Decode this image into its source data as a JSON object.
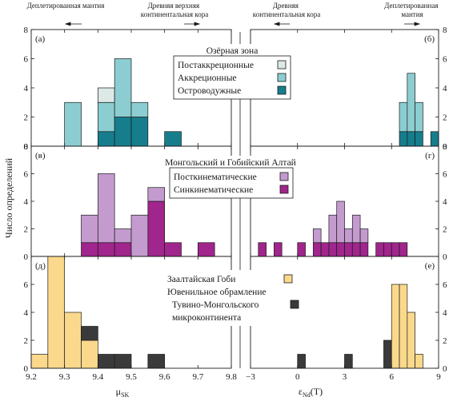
{
  "chart_data": {
    "type": "bar",
    "subtype": "stacked-histogram",
    "layout": "3 rows x 2 columns, shared axes",
    "ylabel": "Число определений",
    "top_annotations": {
      "left_left": {
        "text": "Деплетированная мантия",
        "arrow": "left"
      },
      "left_right": {
        "text": "Древняя верхняя континентальная кора",
        "arrow": "right"
      },
      "right_left": {
        "text": "Древняя континентальная кора",
        "arrow": "left"
      },
      "right_right": {
        "text": "Деплетированная мантия",
        "arrow": "right"
      }
    },
    "axes": {
      "left": {
        "xlabel": "μ",
        "xlabel_sub": "SK",
        "xlim": [
          9.2,
          9.8
        ],
        "xticks": [
          9.2,
          9.3,
          9.4,
          9.5,
          9.6,
          9.7,
          9.8
        ],
        "xtick_labels": [
          "9.2",
          "9.3",
          "9.4",
          "9.5",
          "9.6",
          "9.7",
          "9.8"
        ],
        "bin_width": 0.05
      },
      "right": {
        "xlabel": "ε",
        "xlabel_sub": "Nd",
        "xlabel_suffix": "(T)",
        "xlim": [
          -3,
          9
        ],
        "xticks": [
          -3,
          0,
          3,
          6,
          9
        ],
        "xtick_labels": [
          "−3",
          "0",
          "3",
          "6",
          "9"
        ],
        "bin_width": 0.5
      }
    },
    "colors": {
      "postaccretion": "#dce9e7",
      "accretion": "#8ccdd1",
      "island_arc": "#167d8d",
      "postkinematic": "#c49bce",
      "synkinematic": "#a0258c",
      "juvenile": "#fad98c",
      "tuvino": "#3a3a3a"
    },
    "rows": [
      {
        "title": "Озёрная зона",
        "ylim": [
          0,
          8
        ],
        "yticks": [
          0,
          2,
          4,
          6,
          8
        ],
        "ytick_labels": [
          "0",
          "2",
          "4",
          "6",
          "8"
        ],
        "legend": [
          {
            "label": "Постаккреционные",
            "color_key": "postaccretion"
          },
          {
            "label": "Аккреционные",
            "color_key": "accretion"
          },
          {
            "label": "Островодужные",
            "color_key": "island_arc"
          }
        ],
        "left": {
          "panel_label": "(а)",
          "bins": [
            {
              "x0": 9.3,
              "stack": [
                {
                  "key": "accretion",
                  "count": 3
                }
              ]
            },
            {
              "x0": 9.4,
              "stack": [
                {
                  "key": "island_arc",
                  "count": 1
                },
                {
                  "key": "accretion",
                  "count": 2
                },
                {
                  "key": "postaccretion",
                  "count": 1
                }
              ]
            },
            {
              "x0": 9.45,
              "stack": [
                {
                  "key": "island_arc",
                  "count": 2
                },
                {
                  "key": "accretion",
                  "count": 4
                }
              ]
            },
            {
              "x0": 9.5,
              "stack": [
                {
                  "key": "island_arc",
                  "count": 2
                },
                {
                  "key": "accretion",
                  "count": 1
                }
              ]
            },
            {
              "x0": 9.6,
              "stack": [
                {
                  "key": "island_arc",
                  "count": 1
                }
              ]
            }
          ]
        },
        "right": {
          "panel_label": "(б)",
          "bins": [
            {
              "x0": 6.5,
              "stack": [
                {
                  "key": "island_arc",
                  "count": 1
                },
                {
                  "key": "accretion",
                  "count": 2
                }
              ]
            },
            {
              "x0": 7.0,
              "stack": [
                {
                  "key": "island_arc",
                  "count": 1
                },
                {
                  "key": "accretion",
                  "count": 4
                }
              ]
            },
            {
              "x0": 7.5,
              "stack": [
                {
                  "key": "island_arc",
                  "count": 1
                },
                {
                  "key": "accretion",
                  "count": 2
                }
              ]
            },
            {
              "x0": 8.5,
              "stack": [
                {
                  "key": "island_arc",
                  "count": 1
                }
              ]
            }
          ]
        }
      },
      {
        "title": "Монгольский и Гобийский Алтай",
        "ylim": [
          0,
          8
        ],
        "yticks": [
          0,
          2,
          4,
          6,
          8
        ],
        "ytick_labels": [
          "0",
          "2",
          "4",
          "6",
          "8"
        ],
        "legend": [
          {
            "label": "Посткинематические",
            "color_key": "postkinematic"
          },
          {
            "label": "Синкинематические",
            "color_key": "synkinematic"
          }
        ],
        "left": {
          "panel_label": "(в)",
          "bins": [
            {
              "x0": 9.35,
              "stack": [
                {
                  "key": "synkinematic",
                  "count": 1
                },
                {
                  "key": "postkinematic",
                  "count": 2
                }
              ]
            },
            {
              "x0": 9.4,
              "stack": [
                {
                  "key": "synkinematic",
                  "count": 1
                },
                {
                  "key": "postkinematic",
                  "count": 5
                }
              ]
            },
            {
              "x0": 9.45,
              "stack": [
                {
                  "key": "synkinematic",
                  "count": 1
                },
                {
                  "key": "postkinematic",
                  "count": 1
                }
              ]
            },
            {
              "x0": 9.5,
              "stack": [
                {
                  "key": "postkinematic",
                  "count": 3
                }
              ]
            },
            {
              "x0": 9.55,
              "stack": [
                {
                  "key": "synkinematic",
                  "count": 4
                },
                {
                  "key": "postkinematic",
                  "count": 1
                }
              ]
            },
            {
              "x0": 9.6,
              "stack": [
                {
                  "key": "synkinematic",
                  "count": 1
                }
              ]
            },
            {
              "x0": 9.7,
              "stack": [
                {
                  "key": "synkinematic",
                  "count": 1
                }
              ]
            }
          ]
        },
        "right": {
          "panel_label": "(г)",
          "bins": [
            {
              "x0": -2.5,
              "stack": [
                {
                  "key": "synkinematic",
                  "count": 1
                }
              ]
            },
            {
              "x0": -1.5,
              "stack": [
                {
                  "key": "synkinematic",
                  "count": 1
                }
              ]
            },
            {
              "x0": 0.0,
              "stack": [
                {
                  "key": "synkinematic",
                  "count": 1
                }
              ]
            },
            {
              "x0": 1.0,
              "stack": [
                {
                  "key": "synkinematic",
                  "count": 1
                },
                {
                  "key": "postkinematic",
                  "count": 1
                }
              ]
            },
            {
              "x0": 1.5,
              "stack": [
                {
                  "key": "synkinematic",
                  "count": 1
                }
              ]
            },
            {
              "x0": 2.0,
              "stack": [
                {
                  "key": "synkinematic",
                  "count": 1
                },
                {
                  "key": "postkinematic",
                  "count": 2
                }
              ]
            },
            {
              "x0": 2.5,
              "stack": [
                {
                  "key": "synkinematic",
                  "count": 1
                },
                {
                  "key": "postkinematic",
                  "count": 3
                }
              ]
            },
            {
              "x0": 3.0,
              "stack": [
                {
                  "key": "synkinematic",
                  "count": 1
                },
                {
                  "key": "postkinematic",
                  "count": 1
                }
              ]
            },
            {
              "x0": 3.5,
              "stack": [
                {
                  "key": "synkinematic",
                  "count": 1
                },
                {
                  "key": "postkinematic",
                  "count": 2
                }
              ]
            },
            {
              "x0": 4.0,
              "stack": [
                {
                  "key": "synkinematic",
                  "count": 1
                },
                {
                  "key": "postkinematic",
                  "count": 1
                }
              ]
            },
            {
              "x0": 5.0,
              "stack": [
                {
                  "key": "synkinematic",
                  "count": 1
                }
              ]
            },
            {
              "x0": 5.5,
              "stack": [
                {
                  "key": "synkinematic",
                  "count": 1
                }
              ]
            },
            {
              "x0": 6.0,
              "stack": [
                {
                  "key": "synkinematic",
                  "count": 1
                }
              ]
            },
            {
              "x0": 6.5,
              "stack": [
                {
                  "key": "synkinematic",
                  "count": 1
                }
              ]
            }
          ]
        }
      },
      {
        "title": "Заалтайская Гоби",
        "ylim": [
          0,
          8
        ],
        "yticks": [
          0,
          2,
          4,
          6
        ],
        "ytick_labels": [
          "0",
          "2",
          "4",
          "6"
        ],
        "legend": [
          {
            "label": "Ювенильное обрамление",
            "color_key": "juvenile"
          },
          {
            "label": "Тувино-Монгольского микроконтинента",
            "color_key": "tuvino",
            "lines": [
              "Тувино-Монгольского",
              "микроконтинента"
            ]
          }
        ],
        "left": {
          "panel_label": "(д)",
          "bins": [
            {
              "x0": 9.2,
              "stack": [
                {
                  "key": "juvenile",
                  "count": 1
                }
              ]
            },
            {
              "x0": 9.25,
              "stack": [
                {
                  "key": "juvenile",
                  "count": 8
                }
              ]
            },
            {
              "x0": 9.3,
              "stack": [
                {
                  "key": "juvenile",
                  "count": 4
                }
              ]
            },
            {
              "x0": 9.35,
              "stack": [
                {
                  "key": "juvenile",
                  "count": 2
                },
                {
                  "key": "tuvino",
                  "count": 1
                }
              ]
            },
            {
              "x0": 9.4,
              "stack": [
                {
                  "key": "tuvino",
                  "count": 1
                }
              ]
            },
            {
              "x0": 9.45,
              "stack": [
                {
                  "key": "tuvino",
                  "count": 1
                }
              ]
            },
            {
              "x0": 9.55,
              "stack": [
                {
                  "key": "tuvino",
                  "count": 1
                }
              ]
            }
          ]
        },
        "right": {
          "panel_label": "(е)",
          "bins": [
            {
              "x0": 0.0,
              "stack": [
                {
                  "key": "tuvino",
                  "count": 1
                }
              ]
            },
            {
              "x0": 3.0,
              "stack": [
                {
                  "key": "tuvino",
                  "count": 1
                }
              ]
            },
            {
              "x0": 5.5,
              "stack": [
                {
                  "key": "tuvino",
                  "count": 2
                }
              ]
            },
            {
              "x0": 6.0,
              "stack": [
                {
                  "key": "juvenile",
                  "count": 6
                }
              ]
            },
            {
              "x0": 6.5,
              "stack": [
                {
                  "key": "juvenile",
                  "count": 6
                }
              ]
            },
            {
              "x0": 7.0,
              "stack": [
                {
                  "key": "juvenile",
                  "count": 4
                }
              ]
            },
            {
              "x0": 7.5,
              "stack": [
                {
                  "key": "juvenile",
                  "count": 1
                }
              ]
            }
          ]
        }
      }
    ]
  }
}
